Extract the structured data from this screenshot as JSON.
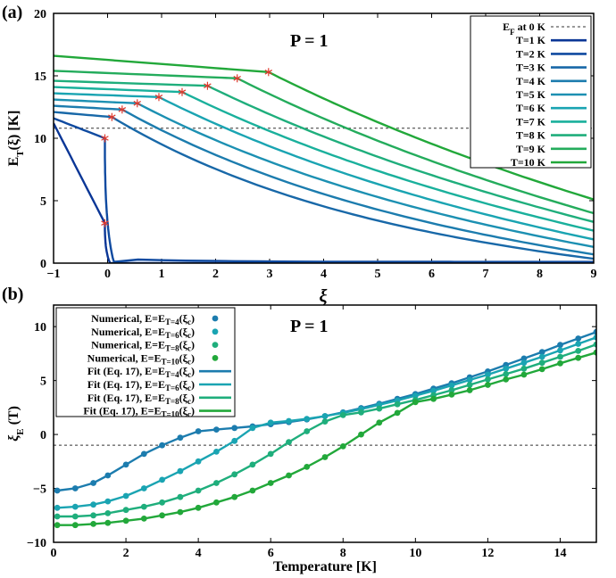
{
  "chart_data": [
    {
      "type": "line",
      "panel_label": "(a)",
      "annotation": "P = 1",
      "xlabel": "ξ",
      "ylabel": "E_T(ξ) [K]",
      "xlim": [
        -1,
        9
      ],
      "ylim": [
        0,
        20
      ],
      "xticks": [
        "−1",
        "0",
        "1",
        "2",
        "3",
        "4",
        "5",
        "6",
        "7",
        "8",
        "9"
      ],
      "yticks": [
        "0",
        "5",
        "10",
        "15",
        "20"
      ],
      "grid": false,
      "legend_position": "top-right",
      "fermi_line": {
        "name": "E_F at 0 K",
        "value": 10.8
      },
      "series": [
        {
          "name": "T=1 K",
          "color": "#0a3696",
          "xc": -0.05,
          "ec": 3.2,
          "start": 11.2
        },
        {
          "name": "T=2 K",
          "color": "#0f4aa0",
          "xc": -0.05,
          "ec": 10.0,
          "start": 11.6
        },
        {
          "name": "T=3 K",
          "color": "#1868a8",
          "xc": 0.08,
          "ec": 11.7,
          "start": 12.1
        },
        {
          "name": "T=4 K",
          "color": "#1c7cae",
          "xc": 0.27,
          "ec": 12.3,
          "start": 12.6
        },
        {
          "name": "T=5 K",
          "color": "#1c90b2",
          "xc": 0.55,
          "ec": 12.8,
          "start": 13.1
        },
        {
          "name": "T=6 K",
          "color": "#1aa4b2",
          "xc": 0.95,
          "ec": 13.3,
          "start": 13.6
        },
        {
          "name": "T=7 K",
          "color": "#1ab09c",
          "xc": 1.38,
          "ec": 13.7,
          "start": 14.1
        },
        {
          "name": "T=8 K",
          "color": "#1fae7c",
          "xc": 1.85,
          "ec": 14.2,
          "start": 14.6
        },
        {
          "name": "T=9 K",
          "color": "#24ac5c",
          "xc": 2.4,
          "ec": 14.8,
          "start": 15.4
        },
        {
          "name": "T=10 K",
          "color": "#22a83a",
          "xc": 2.98,
          "ec": 15.3,
          "start": 16.6
        }
      ],
      "right_edge_values_at_x9": [
        0.0,
        0.1,
        0.35,
        0.7,
        1.3,
        1.9,
        2.6,
        3.3,
        4.0,
        5.1
      ]
    },
    {
      "type": "line",
      "panel_label": "(b)",
      "annotation": "P = 1",
      "xlabel": "Temperature [K]",
      "ylabel": "ξ_E (T)",
      "xlim": [
        0,
        15
      ],
      "ylim": [
        -10,
        12
      ],
      "xticks": [
        "0",
        "2",
        "4",
        "6",
        "8",
        "10",
        "12",
        "14"
      ],
      "yticks": [
        "−10",
        "−5",
        "0",
        "5",
        "10"
      ],
      "grid": false,
      "legend_position": "top-left",
      "dashed_line_y": -1,
      "series": [
        {
          "name": "Numerical, E=E_T=4(ξc)",
          "fit_name": "Fit (Eq. 17), E=E_T=4(ξc)",
          "color": "#1c7cae",
          "x": [
            0.1,
            0.6,
            1.1,
            1.5,
            2.0,
            2.5,
            3.0,
            3.5,
            4.0,
            4.5,
            5.0,
            5.5,
            6.0,
            6.5,
            7.0,
            7.5,
            8.0,
            8.5,
            9.0,
            9.5,
            10.0,
            10.5,
            11.0,
            11.5,
            12.0,
            12.5,
            13.0,
            13.5,
            14.0,
            14.5,
            15.0
          ],
          "y": [
            -5.2,
            -5.0,
            -4.5,
            -3.8,
            -2.8,
            -1.8,
            -1.0,
            -0.3,
            0.3,
            0.45,
            0.6,
            0.75,
            0.95,
            1.15,
            1.4,
            1.7,
            2.05,
            2.45,
            2.85,
            3.3,
            3.75,
            4.25,
            4.75,
            5.3,
            5.85,
            6.45,
            7.05,
            7.65,
            8.3,
            8.9,
            9.5
          ]
        },
        {
          "name": "Numerical, E=E_T=6(ξc)",
          "fit_name": "Fit (Eq. 17), E=E_T=6(ξc)",
          "color": "#1aa4b2",
          "x": [
            0.1,
            0.6,
            1.1,
            1.5,
            2.0,
            2.5,
            3.0,
            3.5,
            4.0,
            4.5,
            5.0,
            5.5,
            6.0,
            6.5,
            7.0,
            7.5,
            8.0,
            8.5,
            9.0,
            9.5,
            10.0,
            10.5,
            11.0,
            11.5,
            12.0,
            12.5,
            13.0,
            13.5,
            14.0,
            14.5,
            15.0
          ],
          "y": [
            -6.8,
            -6.7,
            -6.5,
            -6.2,
            -5.7,
            -5.0,
            -4.2,
            -3.4,
            -2.5,
            -1.6,
            -0.6,
            0.6,
            1.1,
            1.25,
            1.45,
            1.7,
            2.0,
            2.35,
            2.75,
            3.15,
            3.6,
            4.05,
            4.55,
            5.05,
            5.55,
            6.1,
            6.65,
            7.2,
            7.8,
            8.4,
            9.0
          ]
        },
        {
          "name": "Numerical, E=E_T=8(ξc)",
          "fit_name": "Fit (Eq. 17), E=E_T=8(ξc)",
          "color": "#1fae7c",
          "x": [
            0.1,
            0.6,
            1.1,
            1.5,
            2.0,
            2.5,
            3.0,
            3.5,
            4.0,
            4.5,
            5.0,
            5.5,
            6.0,
            6.5,
            7.0,
            7.5,
            8.0,
            8.5,
            9.0,
            9.5,
            10.0,
            10.5,
            11.0,
            11.5,
            12.0,
            12.5,
            13.0,
            13.5,
            14.0,
            14.5,
            15.0
          ],
          "y": [
            -7.6,
            -7.6,
            -7.5,
            -7.3,
            -7.0,
            -6.7,
            -6.3,
            -5.8,
            -5.2,
            -4.5,
            -3.7,
            -2.8,
            -1.8,
            -0.7,
            0.3,
            1.2,
            1.8,
            2.05,
            2.4,
            2.8,
            3.2,
            3.65,
            4.1,
            4.6,
            5.1,
            5.6,
            6.1,
            6.65,
            7.2,
            7.75,
            8.35
          ]
        },
        {
          "name": "Numerical, E=E_T=10(ξc)",
          "fit_name": "Fit (Eq. 17), E=E_T=10(ξc)",
          "color": "#22a83a",
          "x": [
            0.1,
            0.6,
            1.1,
            1.5,
            2.0,
            2.5,
            3.0,
            3.5,
            4.0,
            4.5,
            5.0,
            5.5,
            6.0,
            6.5,
            7.0,
            7.5,
            8.0,
            8.5,
            9.0,
            9.5,
            10.0,
            10.5,
            11.0,
            11.5,
            12.0,
            12.5,
            13.0,
            13.5,
            14.0,
            14.5,
            15.0
          ],
          "y": [
            -8.4,
            -8.4,
            -8.3,
            -8.2,
            -8.0,
            -7.8,
            -7.5,
            -7.2,
            -6.8,
            -6.3,
            -5.8,
            -5.2,
            -4.5,
            -3.8,
            -3.0,
            -2.1,
            -1.1,
            0.0,
            1.1,
            2.0,
            3.0,
            3.3,
            3.7,
            4.1,
            4.6,
            5.1,
            5.55,
            6.05,
            6.6,
            7.1,
            7.6
          ]
        }
      ]
    }
  ]
}
